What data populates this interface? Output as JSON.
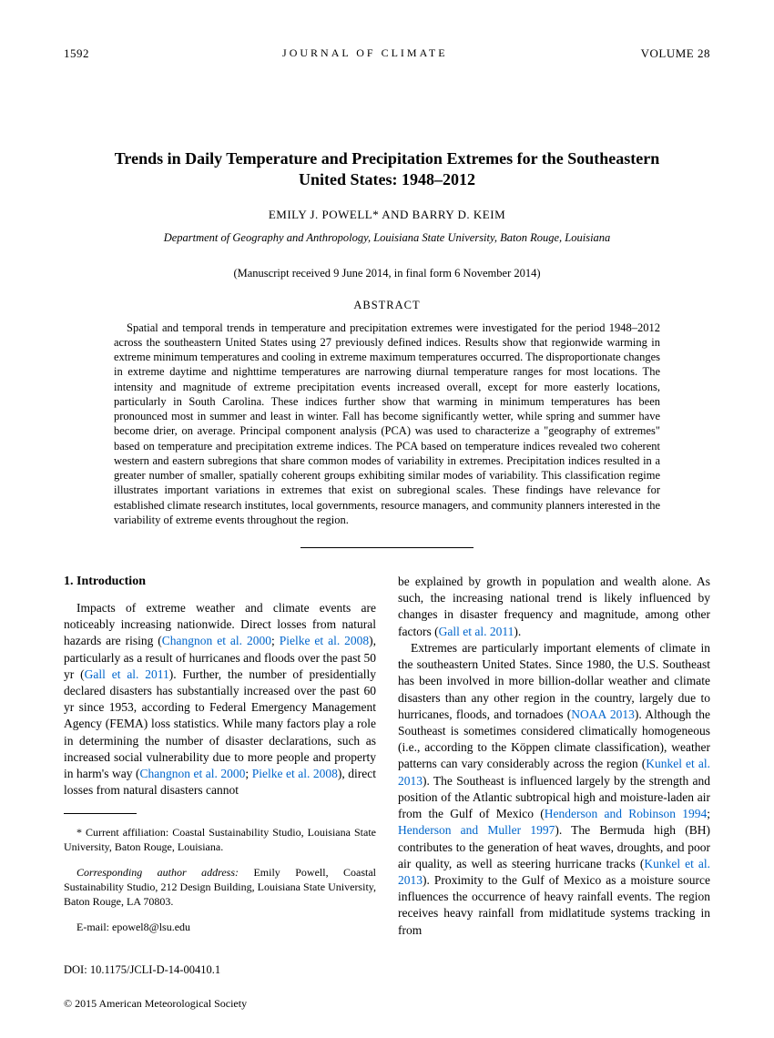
{
  "header": {
    "page_number": "1592",
    "journal": "JOURNAL OF CLIMATE",
    "volume": "VOLUME 28"
  },
  "title": "Trends in Daily Temperature and Precipitation Extremes for the Southeastern United States: 1948–2012",
  "authors": "EMILY J. POWELL* AND BARRY D. KEIM",
  "affiliation": "Department of Geography and Anthropology, Louisiana State University, Baton Rouge, Louisiana",
  "manuscript": "(Manuscript received 9 June 2014, in final form 6 November 2014)",
  "abstract_heading": "ABSTRACT",
  "abstract_text": "Spatial and temporal trends in temperature and precipitation extremes were investigated for the period 1948–2012 across the southeastern United States using 27 previously defined indices. Results show that regionwide warming in extreme minimum temperatures and cooling in extreme maximum temperatures occurred. The disproportionate changes in extreme daytime and nighttime temperatures are narrowing diurnal temperature ranges for most locations. The intensity and magnitude of extreme precipitation events increased overall, except for more easterly locations, particularly in South Carolina. These indices further show that warming in minimum temperatures has been pronounced most in summer and least in winter. Fall has become significantly wetter, while spring and summer have become drier, on average. Principal component analysis (PCA) was used to characterize a \"geography of extremes\" based on temperature and precipitation extreme indices. The PCA based on temperature indices revealed two coherent western and eastern subregions that share common modes of variability in extremes. Precipitation indices resulted in a greater number of smaller, spatially coherent groups exhibiting similar modes of variability. This classification regime illustrates important variations in extremes that exist on subregional scales. These findings have relevance for established climate research institutes, local governments, resource managers, and community planners interested in the variability of extreme events throughout the region.",
  "section_heading": "1.  Introduction",
  "col1_p1_a": "Impacts of extreme weather and climate events are noticeably increasing nationwide. Direct losses from natural hazards are rising (",
  "cite1": "Changnon et al. 2000",
  "col1_sep1": "; ",
  "cite2": "Pielke et al. 2008",
  "col1_p1_b": "), particularly as a result of hurricanes and floods over the past 50 yr (",
  "cite3": "Gall et al. 2011",
  "col1_p1_c": "). Further, the number of presidentially declared disasters has substantially increased over the past 60 yr since 1953, according to Federal Emergency Management Agency (FEMA) loss statistics. While many factors play a role in determining the number of disaster declarations, such as increased social vulnerability due to more people and property in harm's way (",
  "cite4": "Changnon et al. 2000",
  "col1_sep2": "; ",
  "cite5": "Pielke et al. 2008",
  "col1_p1_d": "), direct losses from natural disasters cannot",
  "col2_p1_a": "be explained by growth in population and wealth alone. As such, the increasing national trend is likely influenced by changes in disaster frequency and magnitude, among other factors (",
  "cite6": "Gall et al. 2011",
  "col2_p1_b": ").",
  "col2_p2_a": "Extremes are particularly important elements of climate in the southeastern United States. Since 1980, the U.S. Southeast has been involved in more billion-dollar weather and climate disasters than any other region in the country, largely due to hurricanes, floods, and tornadoes (",
  "cite7": "NOAA 2013",
  "col2_p2_b": "). Although the Southeast is sometimes considered climatically homogeneous (i.e., according to the Köppen climate classification), weather patterns can vary considerably across the region (",
  "cite8": "Kunkel et al. 2013",
  "col2_p2_c": "). The Southeast is influenced largely by the strength and position of the Atlantic subtropical high and moisture-laden air from the Gulf of Mexico (",
  "cite9": "Henderson and Robinson 1994",
  "col2_sep1": "; ",
  "cite10": "Henderson and Muller 1997",
  "col2_p2_d": "). The Bermuda high (BH) contributes to the generation of heat waves, droughts, and poor air quality, as well as steering hurricane tracks (",
  "cite11": "Kunkel et al. 2013",
  "col2_p2_e": "). Proximity to the Gulf of Mexico as a moisture source influences the occurrence of heavy rainfall events. The region receives heavy rainfall from midlatitude systems tracking in from",
  "footnote": "* Current affiliation: Coastal Sustainability Studio, Louisiana State University, Baton Rouge, Louisiana.",
  "corresponding_label": "Corresponding author address:",
  "corresponding_text": " Emily Powell, Coastal Sustainability Studio, 212 Design Building, Louisiana State University, Baton Rouge, LA 70803.",
  "email": "E-mail: epowel8@lsu.edu",
  "doi": "DOI: 10.1175/JCLI-D-14-00410.1",
  "copyright": "© 2015 American Meteorological Society"
}
